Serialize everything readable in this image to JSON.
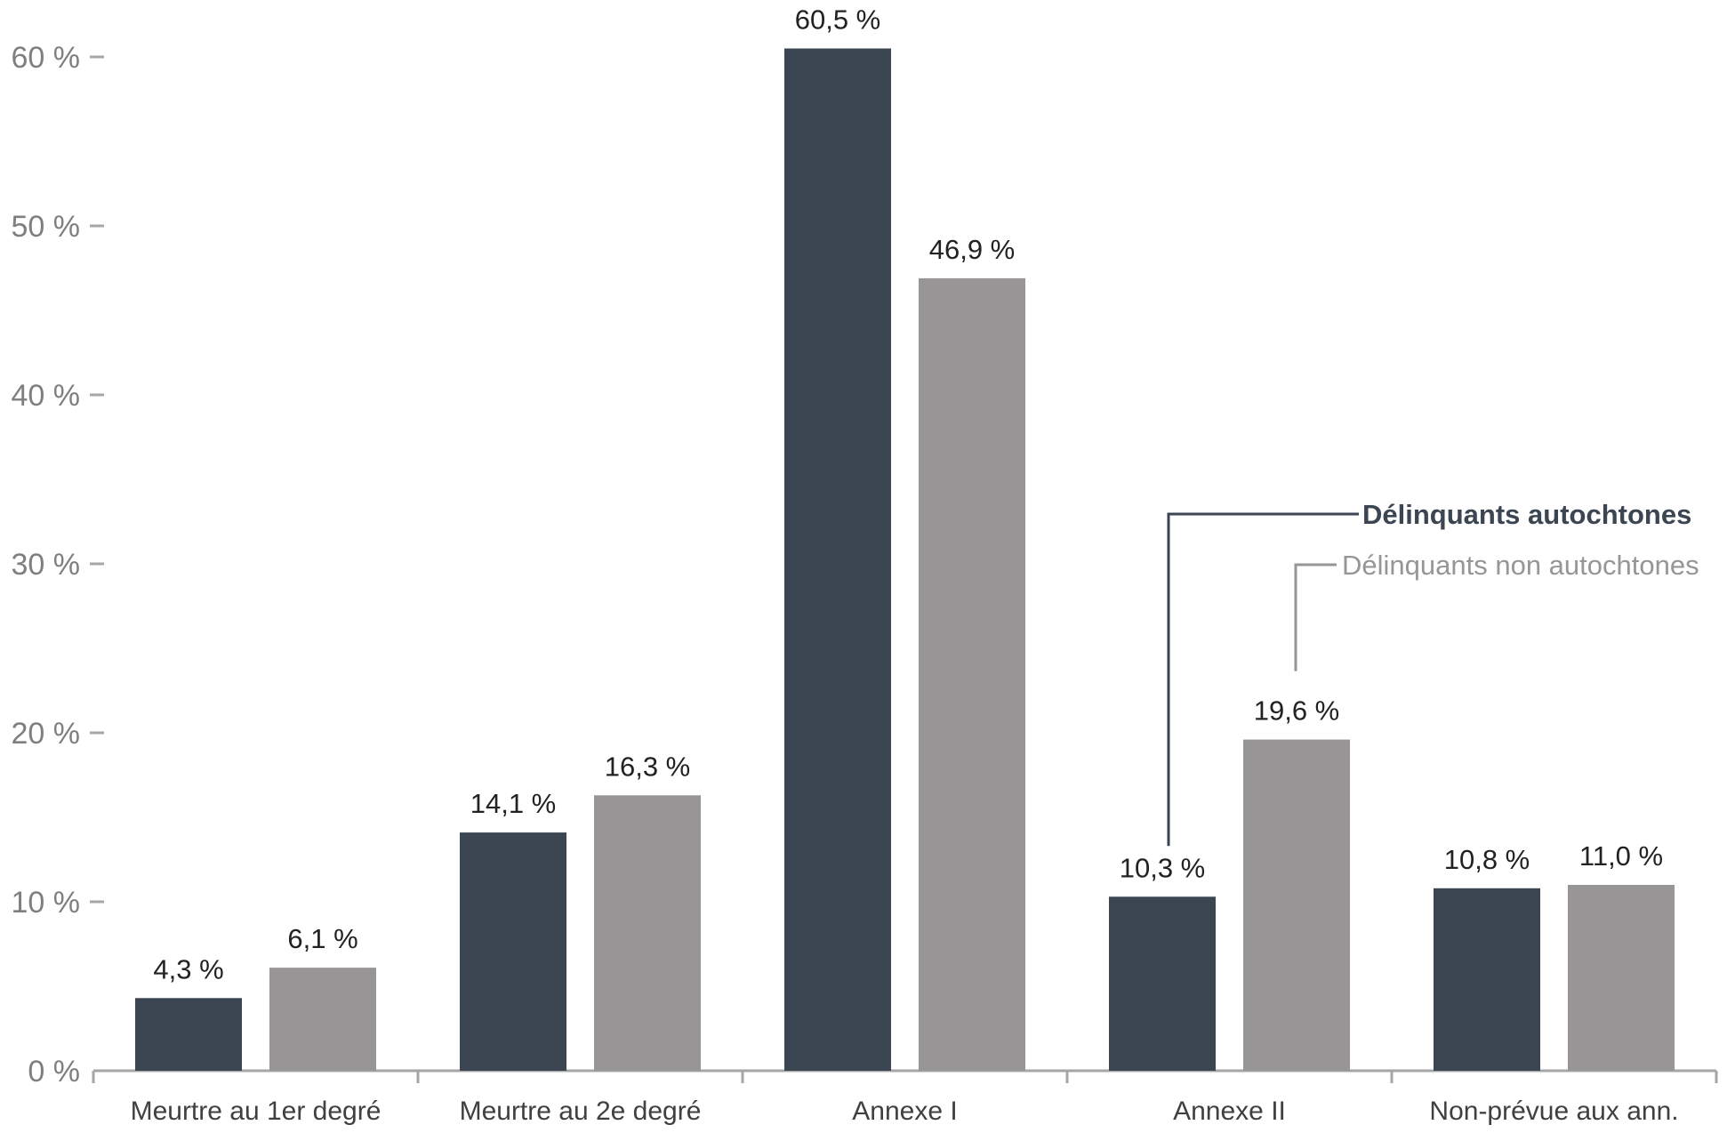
{
  "chart_data": {
    "type": "bar",
    "categories": [
      "Meurtre au 1er degré",
      "Meurtre au 2e degré",
      "Annexe I",
      "Annexe II",
      "Non-prévue aux ann."
    ],
    "series": [
      {
        "name": "Délinquants autochtones",
        "color": "#3c4552",
        "values": [
          4.3,
          14.1,
          60.5,
          10.3,
          10.8
        ],
        "labels": [
          "4,3 %",
          "14,1 %",
          "60,5 %",
          "10,3 %",
          "10,8 %"
        ]
      },
      {
        "name": "Délinquants non autochtones",
        "color": "#979596",
        "values": [
          6.1,
          16.3,
          46.9,
          19.6,
          11.0
        ],
        "labels": [
          "6,1 %",
          "16,3 %",
          "46,9 %",
          "19,6 %",
          "11,0 %"
        ]
      }
    ],
    "y_ticks": [
      "0 %",
      "10 %",
      "20 %",
      "30 %",
      "40 %",
      "50 %",
      "60 %"
    ],
    "ylim": [
      0,
      60
    ],
    "grid": false,
    "legend_placement": "callout lines on Annexe II bars",
    "colors": {
      "axis": "#a6a6a6",
      "tick_text": "#7f7f7f",
      "category_text": "#404040",
      "label_text": "#222222"
    }
  }
}
